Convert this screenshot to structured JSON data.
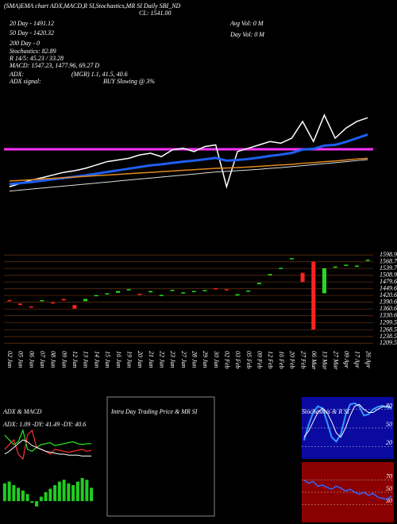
{
  "chart_data": [
    {
      "type": "line",
      "annotations": [
        "(SMA)EMA chart ADX,MACD,R SI,Stochastics,MR SI  Daily SBI_ND",
        "20 Day - 1491.12",
        "50 Day - 1420.32",
        "200 Day - 0",
        "Stochastics: 82.89",
        "R 14/5: 45.23 / 33.28",
        "MACD: 1547.23, 1477.96, 69.27 D",
        "ADX:",
        "(MGR) 1.1, 41.5, 40.6",
        "ADX signal:",
        "BUY Slowing @ 3%",
        "CL: 1541.00",
        "Avg Vol: 0 M",
        "Day Vol: 0 M"
      ],
      "ylim": [
        1300,
        1845
      ],
      "series": [
        {
          "color": "#ffffff",
          "values": [
            1335,
            1345,
            1355,
            1362,
            1370,
            1378,
            1383,
            1390,
            1400,
            1410,
            1415,
            1420,
            1430,
            1435,
            1425,
            1445,
            1450,
            1440,
            1455,
            1460,
            1335,
            1440,
            1450,
            1460,
            1470,
            1465,
            1480,
            1530,
            1470,
            1549,
            1480,
            1510,
            1530,
            1541
          ]
        },
        {
          "color": "#1e5ff0",
          "values": [
            1343,
            1346,
            1349,
            1353,
            1357,
            1361,
            1365,
            1369,
            1374,
            1379,
            1384,
            1389,
            1394,
            1399,
            1402,
            1406,
            1410,
            1413,
            1417,
            1421,
            1413,
            1415,
            1418,
            1422,
            1427,
            1431,
            1436,
            1446,
            1448,
            1458,
            1460,
            1469,
            1480,
            1491
          ]
        },
        {
          "color": "#e08a1e",
          "values": [
            1352,
            1354,
            1356,
            1358,
            1360,
            1362,
            1364,
            1366,
            1368,
            1370,
            1372,
            1374,
            1376,
            1378,
            1380,
            1382,
            1384,
            1386,
            1388,
            1390,
            1391,
            1392,
            1394,
            1396,
            1398,
            1400,
            1402,
            1405,
            1407,
            1410,
            1412,
            1415,
            1418,
            1420
          ]
        },
        {
          "color": "#dddddd",
          "values": [
            1322,
            1325,
            1328,
            1331,
            1334,
            1337,
            1340,
            1343,
            1346,
            1349,
            1352,
            1355,
            1358,
            1361,
            1364,
            1367,
            1370,
            1373,
            1376,
            1379,
            1381,
            1383,
            1385,
            1387,
            1390,
            1392,
            1395,
            1398,
            1401,
            1404,
            1407,
            1410,
            1413,
            1416
          ]
        }
      ],
      "reference_line": {
        "value": 1447,
        "color": "#ff33ff"
      }
    },
    {
      "type": "candlestick",
      "categories": [
        "02 Jan",
        "05 Jan",
        "06 Jan",
        "07 Jan",
        "08 Jan",
        "09 Jan",
        "12 Jan",
        "13 Jan",
        "14 Jan",
        "15 Jan",
        "16 Jan",
        "19 Jan",
        "20 Jan",
        "21 Jan",
        "22 Jan",
        "23 Jan",
        "27 Jan",
        "28 Jan",
        "29 Jan",
        "30 Jan",
        "02 Feb",
        "03 Feb",
        "05 Feb",
        "09 Feb",
        "12 Feb",
        "16 Feb",
        "20 Feb",
        "27 Feb",
        "06 Mar",
        "13 Mar",
        "27 Mar",
        "09 Apr",
        "17 Apr",
        "26 Apr"
      ],
      "open": [
        1400,
        1385,
        1372,
        1395,
        1390,
        1405,
        1378,
        1395,
        1418,
        1425,
        1432,
        1445,
        1428,
        1434,
        1420,
        1442,
        1430,
        1438,
        1440,
        1452,
        1448,
        1420,
        1440,
        1470,
        1510,
        1540,
        1580,
        1520,
        1570,
        1430,
        1545,
        1555,
        1548,
        1575
      ],
      "close": [
        1395,
        1378,
        1368,
        1400,
        1385,
        1398,
        1362,
        1405,
        1422,
        1430,
        1440,
        1448,
        1424,
        1440,
        1423,
        1445,
        1434,
        1440,
        1444,
        1450,
        1445,
        1426,
        1442,
        1476,
        1515,
        1542,
        1585,
        1480,
        1270,
        1540,
        1548,
        1556,
        1552,
        1578
      ],
      "up_color": "#22dd22",
      "down_color": "#ff2222",
      "ylim": [
        1200,
        1610
      ],
      "yticks": [
        1598.98,
        1568.72,
        1539.7,
        1508.93,
        1479.67,
        1449.65,
        1420.63,
        1390.62,
        1360.62,
        1330.62,
        1299.59,
        1268.58,
        1238.55,
        1209.53
      ],
      "grid": true
    },
    {
      "type": "line",
      "title": "ADX  & MACD",
      "annotations": [
        "ADX: 1.09 -DY: 41.49 -DY: 40.6"
      ],
      "ylim": [
        0,
        50
      ],
      "series": [
        {
          "color": "#22ee22",
          "values": [
            35,
            30,
            25,
            28,
            40,
            20,
            18,
            22,
            25,
            26,
            27,
            24,
            25,
            26,
            27,
            28,
            26,
            25,
            26,
            26
          ]
        },
        {
          "color": "#ff3333",
          "values": [
            20,
            25,
            30,
            15,
            10,
            35,
            40,
            22,
            20,
            18,
            15,
            20,
            19,
            18,
            17,
            18,
            19,
            20,
            18,
            19
          ]
        },
        {
          "color": "#ffffff",
          "values": [
            15,
            18,
            22,
            26,
            30,
            28,
            24,
            22,
            20,
            18,
            17,
            16,
            15,
            15,
            14,
            14,
            14,
            13,
            13,
            13
          ]
        }
      ]
    },
    {
      "type": "bar",
      "color": "#22cc22",
      "ylim": [
        -15,
        35
      ],
      "values": [
        20,
        22,
        18,
        15,
        12,
        8,
        -2,
        -6,
        5,
        10,
        14,
        18,
        22,
        24,
        20,
        18,
        22,
        26,
        24,
        15
      ]
    },
    {
      "type": "empty",
      "title": "Intra Day Trading Price  & MR                    SI"
    },
    {
      "type": "line",
      "title": "Stochastics & R                  SI",
      "background": "#0a0aa0",
      "ylim": [
        0,
        100
      ],
      "yticks": [
        80,
        50,
        20
      ],
      "series": [
        {
          "color": "#3399ff",
          "values": [
            30,
            55,
            75,
            85,
            82,
            60,
            35,
            28,
            40,
            70,
            88,
            90,
            85,
            70,
            72,
            80,
            84,
            86,
            83,
            82
          ]
        },
        {
          "color": "#ffffff",
          "values": [
            35,
            45,
            60,
            75,
            82,
            75,
            60,
            42,
            35,
            50,
            70,
            85,
            88,
            80,
            75,
            75,
            80,
            84,
            85,
            83
          ]
        }
      ]
    },
    {
      "type": "line",
      "background": "#8b0000",
      "ylim": [
        0,
        100
      ],
      "yticks": [
        70,
        50,
        30
      ],
      "series": [
        {
          "color": "#3366ff",
          "values": [
            70,
            65,
            68,
            60,
            62,
            58,
            55,
            60,
            57,
            52,
            55,
            50,
            47,
            50,
            45,
            48,
            42,
            40,
            38,
            44
          ]
        }
      ]
    }
  ]
}
